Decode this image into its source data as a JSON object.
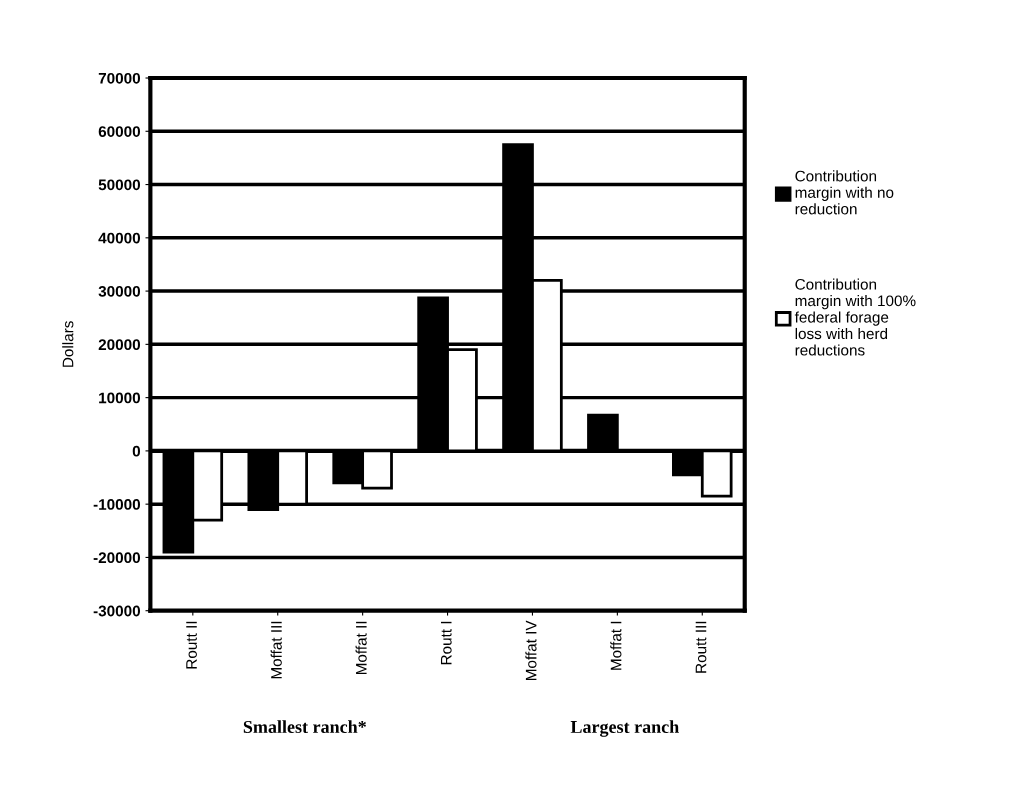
{
  "chart_data": {
    "type": "bar",
    "ylabel": "Dollars",
    "categories": [
      "Routt II",
      "Moffat III",
      "Moffat II",
      "Routt I",
      "Moffat IV",
      "Moffat I",
      "Routt III"
    ],
    "series": [
      {
        "name": "Contribution margin with no reduction",
        "color": "#000000",
        "values": [
          -19000,
          -11000,
          -6000,
          28700,
          57500,
          6700,
          -4500
        ]
      },
      {
        "name": "Contribution margin with 100% federal forage loss with herd reductions",
        "color": "#ffffff",
        "values": [
          -13000,
          -10000,
          -7000,
          19000,
          32000,
          null,
          -8500
        ]
      }
    ],
    "ylim": [
      -30000,
      70000
    ],
    "yticks": [
      -30000,
      -20000,
      -10000,
      0,
      10000,
      20000,
      30000,
      40000,
      50000,
      60000,
      70000
    ],
    "grid": "y",
    "legend": "right",
    "annotations": [
      "Smallest ranch*",
      "Largest ranch"
    ]
  }
}
